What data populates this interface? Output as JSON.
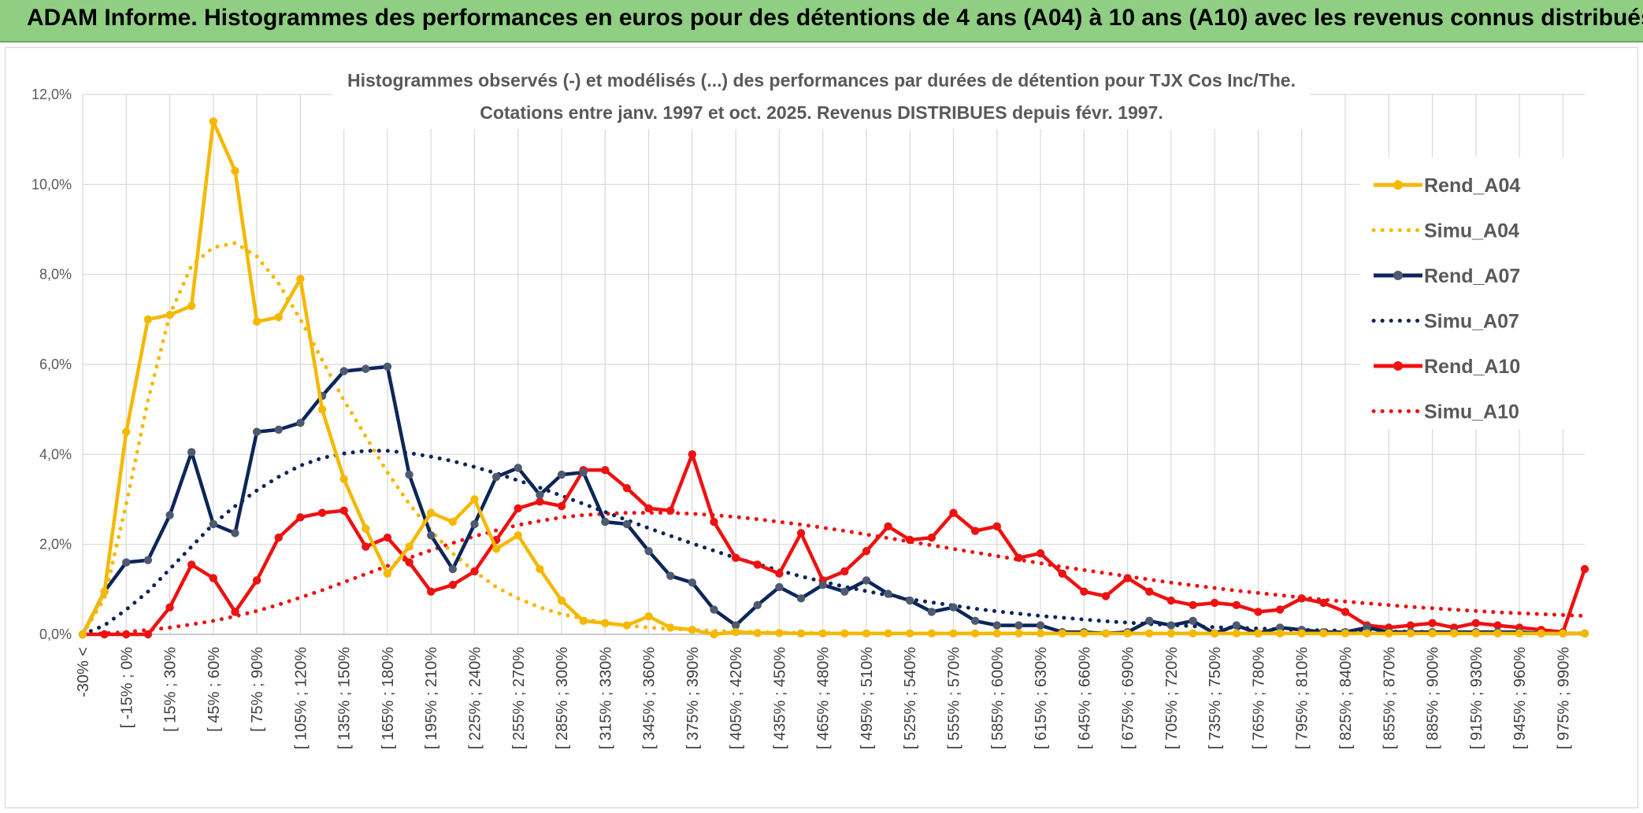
{
  "header": {
    "title": "ADAM Informe. Histogrammes des performances en euros pour des détentions de 4 ans (A04) à 10 ans (A10) avec les revenus connus distribués"
  },
  "colors": {
    "banner": "#8fce83",
    "a04": "#f5b800",
    "a07": "#0c2659",
    "a10": "#ee1111",
    "grid": "#d9d9d9"
  },
  "chart_data": {
    "type": "line",
    "subtitle_lines": [
      "Histogrammes observés (-) et modélisés (...) des performances par durées de détention pour TJX Cos Inc/The.",
      "Cotations entre janv. 1997 et oct. 2025. Revenus DISTRIBUES depuis févr. 1997."
    ],
    "yticks": [
      "0,0%",
      "2,0%",
      "4,0%",
      "6,0%",
      "8,0%",
      "10,0%",
      "12,0%"
    ],
    "ylim": [
      0,
      12
    ],
    "x_labels": [
      "-30% <",
      "[ -15% ; 0%",
      "[ 15% ; 30%",
      "[ 45% ; 60%",
      "[ 75% ; 90%",
      "[ 105% ; 120%",
      "[ 135% ; 150%",
      "[ 165% ; 180%",
      "[ 195% ; 210%",
      "[ 225% ; 240%",
      "[ 255% ; 270%",
      "[ 285% ; 300%",
      "[ 315% ; 330%",
      "[ 345% ; 360%",
      "[ 375% ; 390%",
      "[ 405% ; 420%",
      "[ 435% ; 450%",
      "[ 465% ; 480%",
      "[ 495% ; 510%",
      "[ 525% ; 540%",
      "[ 555% ; 570%",
      "[ 585% ; 600%",
      "[ 615% ; 630%",
      "[ 645% ; 660%",
      "[ 675% ; 690%",
      "[ 705% ; 720%",
      "[ 735% ; 750%",
      "[ 765% ; 780%",
      "[ 795% ; 810%",
      "[ 825% ; 840%",
      "[ 855% ; 870%",
      "[ 885% ; 900%",
      "[ 915% ; 930%",
      "[ 945% ; 960%",
      "[ 975% ; 990%"
    ],
    "legend_position": "right",
    "grid": true,
    "series": [
      {
        "name": "Rend_A04",
        "style": "solid",
        "color": "#f5b800",
        "values": [
          0,
          0.95,
          4.5,
          7.0,
          7.1,
          7.3,
          11.4,
          10.3,
          6.95,
          7.05,
          7.9,
          5.0,
          3.45,
          2.35,
          1.35,
          1.95,
          2.7,
          2.5,
          3.0,
          1.9,
          2.2,
          1.45,
          0.75,
          0.3,
          0.25,
          0.2,
          0.4,
          0.15,
          0.1,
          0.0,
          0.05,
          0.03,
          0.03,
          0.02,
          0.02,
          0.02,
          0.02,
          0.02,
          0.02,
          0.02,
          0.02,
          0.02,
          0.02,
          0.02,
          0.02,
          0.02,
          0.02,
          0.02,
          0.02,
          0.02,
          0.02,
          0.02,
          0.02,
          0.02,
          0.02,
          0.02,
          0.02,
          0.02,
          0.02,
          0.02,
          0.02,
          0.02,
          0.02,
          0.02,
          0.02,
          0.02,
          0.02,
          0.02,
          0.02,
          0.02
        ]
      },
      {
        "name": "Simu_A04",
        "style": "dotted",
        "color": "#f5b800",
        "values": [
          0,
          0.8,
          2.9,
          5.2,
          7.1,
          8.2,
          8.6,
          8.7,
          8.4,
          7.8,
          7.0,
          6.1,
          5.2,
          4.4,
          3.6,
          2.9,
          2.3,
          1.8,
          1.4,
          1.05,
          0.8,
          0.6,
          0.45,
          0.35,
          0.25,
          0.2,
          0.15,
          0.12,
          0.1,
          0.08,
          0.06,
          0.05,
          0.04,
          0.03,
          0.03,
          0.02,
          0.02,
          0.02,
          0.02,
          0.02,
          0.02,
          0.02,
          0.02,
          0.02,
          0.02,
          0.02,
          0.02,
          0.02,
          0.02,
          0.02,
          0.02,
          0.02,
          0.02,
          0.02,
          0.02,
          0.02,
          0.02,
          0.02,
          0.02,
          0.02,
          0.02,
          0.02,
          0.02,
          0.02,
          0.02,
          0.02,
          0.02,
          0.02,
          0.02,
          0.02
        ]
      },
      {
        "name": "Rend_A07",
        "style": "solid",
        "color": "#0c2659",
        "values": [
          0,
          0.95,
          1.6,
          1.65,
          2.65,
          4.05,
          2.45,
          2.25,
          4.5,
          4.55,
          4.7,
          5.3,
          5.85,
          5.9,
          5.95,
          3.55,
          2.2,
          1.45,
          2.45,
          3.5,
          3.7,
          3.1,
          3.55,
          3.6,
          2.5,
          2.45,
          1.85,
          1.3,
          1.15,
          0.55,
          0.2,
          0.65,
          1.05,
          0.8,
          1.1,
          0.95,
          1.2,
          0.9,
          0.75,
          0.5,
          0.6,
          0.3,
          0.2,
          0.2,
          0.2,
          0.05,
          0.05,
          0.02,
          0.05,
          0.3,
          0.2,
          0.3,
          0.02,
          0.2,
          0.02,
          0.15,
          0.1,
          0.05,
          0.05,
          0.15,
          0.05,
          0.05,
          0.05,
          0.05,
          0.05,
          0.05,
          0.05,
          0.02,
          0.02,
          0.02
        ]
      },
      {
        "name": "Simu_A07",
        "style": "dotted",
        "color": "#0c2659",
        "values": [
          0,
          0.2,
          0.55,
          0.95,
          1.45,
          1.95,
          2.45,
          2.85,
          3.2,
          3.5,
          3.75,
          3.92,
          4.02,
          4.08,
          4.08,
          4.03,
          3.95,
          3.85,
          3.72,
          3.58,
          3.42,
          3.26,
          3.08,
          2.9,
          2.72,
          2.54,
          2.36,
          2.19,
          2.02,
          1.86,
          1.7,
          1.56,
          1.42,
          1.29,
          1.17,
          1.06,
          0.96,
          0.87,
          0.78,
          0.71,
          0.64,
          0.57,
          0.51,
          0.46,
          0.41,
          0.37,
          0.33,
          0.29,
          0.26,
          0.23,
          0.21,
          0.18,
          0.16,
          0.14,
          0.13,
          0.11,
          0.1,
          0.09,
          0.08,
          0.07,
          0.06,
          0.06,
          0.05,
          0.04,
          0.04,
          0.03,
          0.03,
          0.03,
          0.02,
          0.02
        ]
      },
      {
        "name": "Rend_A10",
        "style": "solid",
        "color": "#ee1111",
        "values": [
          0,
          0,
          0,
          0,
          0.6,
          1.55,
          1.25,
          0.5,
          1.2,
          2.15,
          2.6,
          2.7,
          2.75,
          1.95,
          2.15,
          1.6,
          0.95,
          1.1,
          1.4,
          2.1,
          2.8,
          2.95,
          2.85,
          3.65,
          3.65,
          3.25,
          2.8,
          2.75,
          4.0,
          2.5,
          1.7,
          1.55,
          1.35,
          2.25,
          1.2,
          1.4,
          1.85,
          2.4,
          2.1,
          2.15,
          2.7,
          2.3,
          2.4,
          1.7,
          1.8,
          1.35,
          0.95,
          0.85,
          1.25,
          0.95,
          0.75,
          0.65,
          0.7,
          0.65,
          0.5,
          0.55,
          0.8,
          0.7,
          0.5,
          0.2,
          0.15,
          0.2,
          0.25,
          0.15,
          0.25,
          0.2,
          0.15,
          0.1,
          0.05,
          1.45
        ]
      },
      {
        "name": "Simu_A10",
        "style": "dotted",
        "color": "#ee1111",
        "values": [
          0,
          0.02,
          0.05,
          0.1,
          0.15,
          0.22,
          0.3,
          0.4,
          0.52,
          0.66,
          0.82,
          0.98,
          1.16,
          1.34,
          1.52,
          1.7,
          1.87,
          2.03,
          2.18,
          2.31,
          2.43,
          2.52,
          2.6,
          2.65,
          2.68,
          2.7,
          2.7,
          2.7,
          2.68,
          2.65,
          2.61,
          2.56,
          2.5,
          2.44,
          2.37,
          2.3,
          2.22,
          2.14,
          2.06,
          1.98,
          1.9,
          1.82,
          1.74,
          1.66,
          1.58,
          1.5,
          1.43,
          1.36,
          1.29,
          1.22,
          1.15,
          1.09,
          1.03,
          0.97,
          0.92,
          0.87,
          0.82,
          0.77,
          0.73,
          0.69,
          0.65,
          0.61,
          0.58,
          0.55,
          0.52,
          0.49,
          0.47,
          0.45,
          0.43,
          0.41
        ]
      }
    ]
  }
}
